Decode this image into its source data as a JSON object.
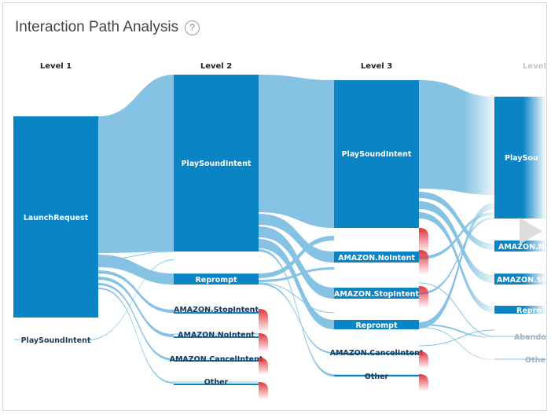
{
  "header": {
    "title": "Interaction Path Analysis",
    "help_symbol": "?"
  },
  "levels": [
    "Level 1",
    "Level 2",
    "Level 3",
    "Level"
  ],
  "nodes": {
    "l1_launch": "LaunchRequest",
    "l1_play": "PlaySoundIntent",
    "l2_play": "PlaySoundIntent",
    "l2_reprompt": "Reprompt",
    "l2_stop": "AMAZON.StopIntent",
    "l2_no": "AMAZON.NoIntent",
    "l2_cancel": "AMAZON.CancelIntent",
    "l2_other": "Other",
    "l3_play": "PlaySoundIntent",
    "l3_no": "AMAZON.NoIntent",
    "l3_stop": "AMAZON.StopIntent",
    "l3_reprompt": "Reprompt",
    "l3_cancel": "AMAZON.CancelIntent",
    "l3_other": "Other",
    "l4_play": "PlaySou",
    "l4_a": "AMAZON.N",
    "l4_b": "AMAZON.St",
    "l4_reprompt": "Repro",
    "l4_abandon": "Abando",
    "l4_other": "Othe"
  },
  "colors": {
    "node": "#0b84c6",
    "flow": "#86c2e3",
    "drop": "#e2323c",
    "level_label": "#222222"
  }
}
